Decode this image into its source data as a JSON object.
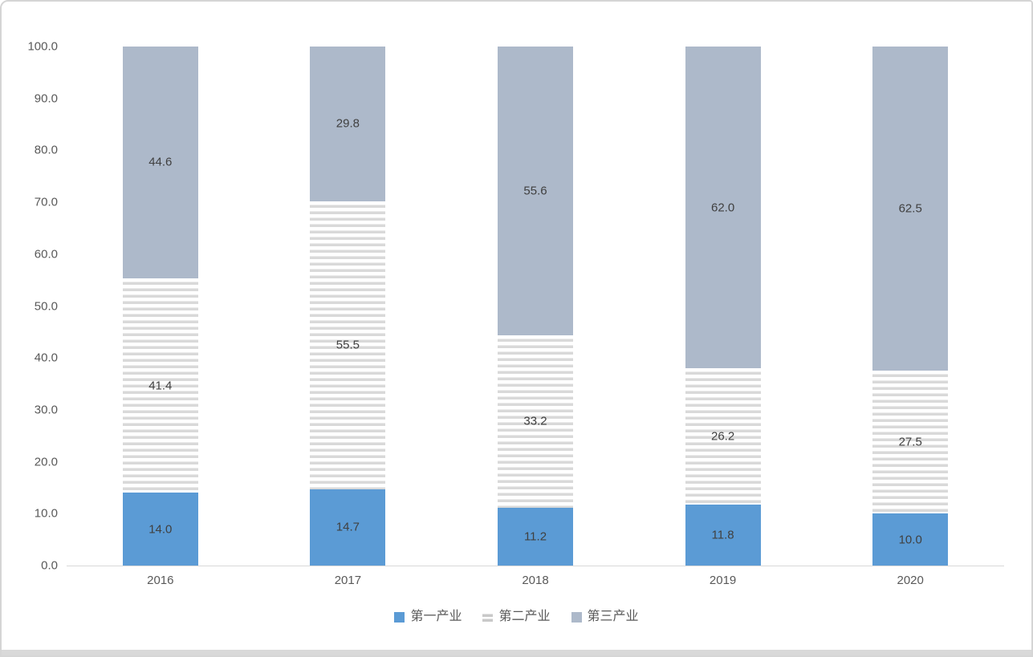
{
  "chart_data": {
    "type": "bar",
    "stacked": true,
    "unit": "percent",
    "title": "",
    "xlabel": "",
    "ylabel": "",
    "categories": [
      "2016",
      "2017",
      "2018",
      "2019",
      "2020"
    ],
    "series": [
      {
        "name": "第一产业",
        "color": "#5b9bd5",
        "pattern": "solid",
        "values": [
          14.0,
          14.7,
          11.2,
          11.8,
          10.0
        ]
      },
      {
        "name": "第二产业",
        "color": "#d9d9d9",
        "pattern": "horizontal-stripes",
        "values": [
          41.4,
          55.5,
          33.2,
          26.2,
          27.5
        ]
      },
      {
        "name": "第三产业",
        "color": "#adb9ca",
        "pattern": "solid",
        "values": [
          44.6,
          29.8,
          55.6,
          62.0,
          62.5
        ]
      }
    ],
    "ylim": [
      0,
      100
    ],
    "ytick_step": 10,
    "ytick_labels": [
      "0.0",
      "10.0",
      "20.0",
      "30.0",
      "40.0",
      "50.0",
      "60.0",
      "70.0",
      "80.0",
      "90.0",
      "100.0"
    ],
    "grid": false,
    "legend_position": "bottom",
    "data_labels": true,
    "value_format": "one-decimal"
  },
  "style": {
    "data_label_color": "#404040",
    "axis_label_color": "#595959",
    "axis_line_color": "#d9d9d9",
    "stripe_background": "#ffffff",
    "frame_border_color": "#d5d5d5",
    "bottom_strip_color": "#d9d9d9"
  }
}
